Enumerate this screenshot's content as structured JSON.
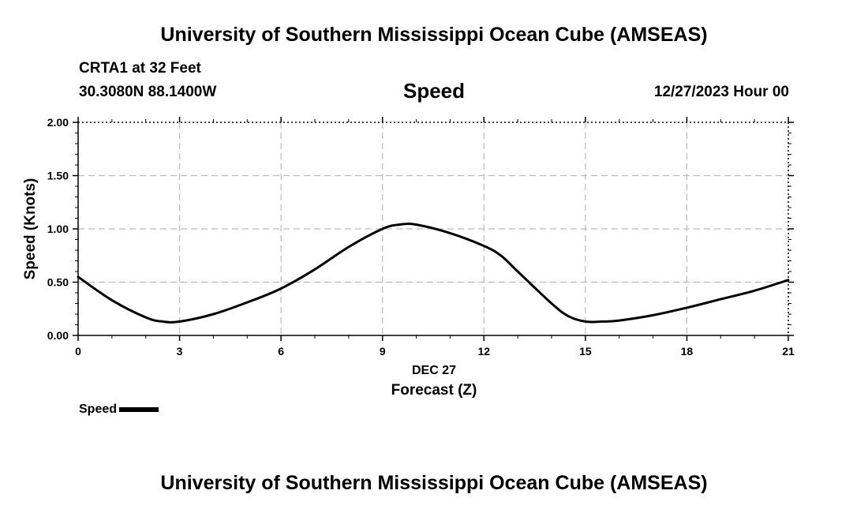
{
  "header": {
    "title": "University of Southern Mississippi Ocean Cube (AMSEAS)",
    "station": "CRTA1 at 32 Feet",
    "coords": "30.3080N  88.1400W",
    "chart_title": "Speed",
    "datetime": "12/27/2023 Hour 00"
  },
  "footer": {
    "title": "University of Southern Mississippi Ocean Cube (AMSEAS)"
  },
  "legend": {
    "label": "Speed"
  },
  "chart_data": {
    "type": "line",
    "title": "Speed",
    "xlabel": "Forecast (Z)",
    "xsublabel": "DEC 27",
    "ylabel": "Speed (Knots)",
    "xlim": [
      0,
      21
    ],
    "ylim": [
      0,
      2
    ],
    "xticks": [
      0,
      3,
      6,
      9,
      12,
      15,
      18,
      21
    ],
    "xtick_labels": [
      "0",
      "3",
      "6",
      "9",
      "12",
      "15",
      "18",
      "21"
    ],
    "yticks": [
      0,
      0.5,
      1,
      1.5,
      2
    ],
    "ytick_labels": [
      "0.00",
      "0.50",
      "1.00",
      "1.50",
      "2.00"
    ],
    "grid": true,
    "series": [
      {
        "name": "Speed",
        "color": "#000000",
        "x": [
          0,
          1,
          2,
          2.5,
          3,
          4,
          5,
          6,
          7,
          8,
          9,
          9.5,
          10,
          11,
          12,
          12.5,
          13,
          14,
          14.5,
          15,
          15.5,
          16,
          17,
          18,
          19,
          20,
          21
        ],
        "y": [
          0.55,
          0.33,
          0.17,
          0.13,
          0.13,
          0.2,
          0.31,
          0.44,
          0.62,
          0.83,
          1.0,
          1.04,
          1.04,
          0.96,
          0.84,
          0.75,
          0.6,
          0.3,
          0.18,
          0.13,
          0.13,
          0.14,
          0.19,
          0.26,
          0.34,
          0.42,
          0.52
        ]
      }
    ]
  }
}
